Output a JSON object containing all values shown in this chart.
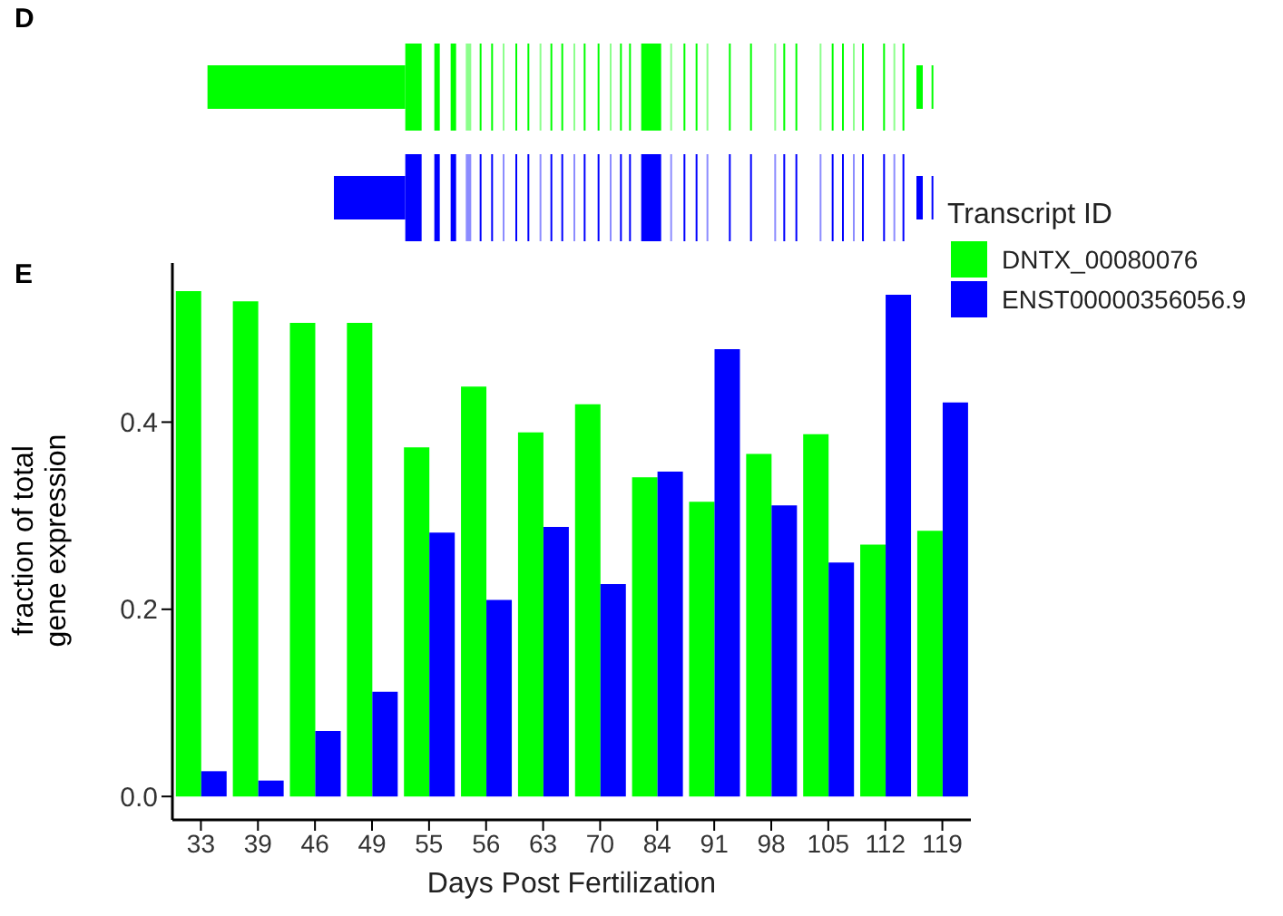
{
  "chart_data": {
    "type": "bar",
    "xlabel": "Days Post Fertilization",
    "ylabel": "fraction of total gene expression",
    "legend_title": "Transcript ID",
    "annotations": [
      "D",
      "E"
    ],
    "categories": [
      "33",
      "39",
      "46",
      "49",
      "55",
      "56",
      "63",
      "70",
      "84",
      "91",
      "98",
      "105",
      "112",
      "119"
    ],
    "series": [
      {
        "name": "DNTX_00080076",
        "color": "#00ff00",
        "values": [
          0.54,
          0.529,
          0.506,
          0.506,
          0.373,
          0.438,
          0.389,
          0.419,
          0.341,
          0.315,
          0.366,
          0.387,
          0.269,
          0.284
        ]
      },
      {
        "name": "ENST00000356056.9",
        "color": "#0000ff",
        "values": [
          0.027,
          0.017,
          0.07,
          0.112,
          0.282,
          0.21,
          0.288,
          0.227,
          0.347,
          0.478,
          0.311,
          0.25,
          0.536,
          0.421
        ]
      }
    ],
    "ylim": [
      -0.025,
      0.57
    ],
    "yticks": [
      {
        "value": 0,
        "label": "0.0"
      },
      {
        "value": 0.2,
        "label": "0.2"
      },
      {
        "value": 0.4,
        "label": "0.4"
      }
    ],
    "grid": false,
    "legend": "top right"
  }
}
